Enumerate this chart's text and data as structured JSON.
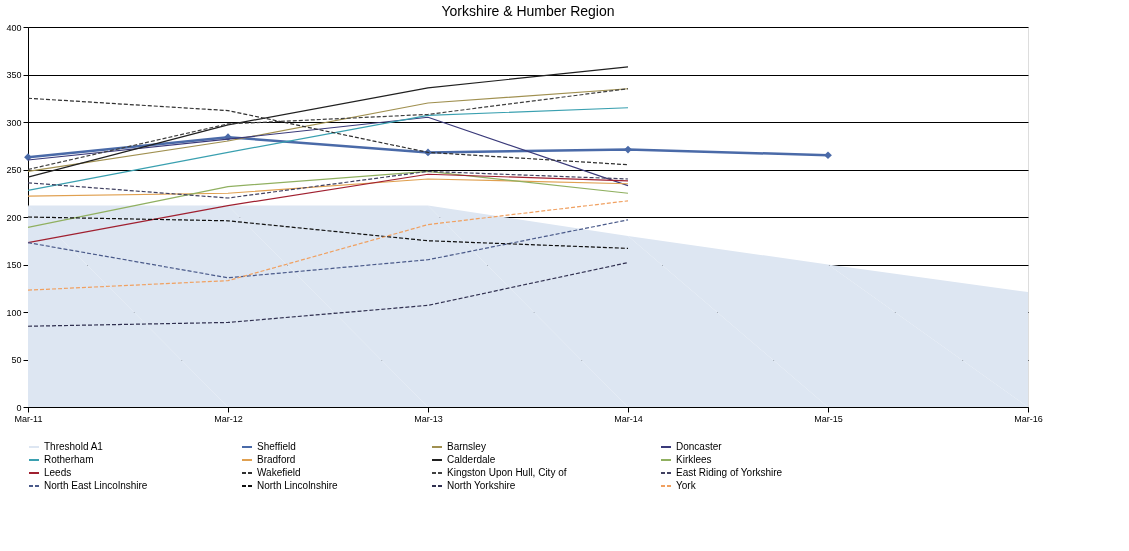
{
  "chart_data": {
    "type": "line",
    "title": "Yorkshire & Humber Region",
    "categories": [
      "Mar-11",
      "Mar-12",
      "Mar-13",
      "Mar-14",
      "Mar-15",
      "Mar-16"
    ],
    "ylim": [
      0,
      400
    ],
    "yticks": [
      0,
      50,
      100,
      150,
      200,
      250,
      300,
      350,
      400
    ],
    "grid": "y",
    "legend": "bottom",
    "series": [
      {
        "name": "Threshold A1",
        "type": "area",
        "color": "#dde6f2",
        "values": [
          212,
          212,
          212,
          180,
          150,
          121
        ]
      },
      {
        "name": "Sheffield",
        "color": "#4a6aa8",
        "marker": "diamond",
        "line_style": "solid",
        "values": [
          263,
          284,
          268,
          271,
          265,
          null
        ]
      },
      {
        "name": "Barnsley",
        "color": "#a09050",
        "line_style": "solid",
        "values": [
          248,
          280,
          320,
          335,
          null,
          null
        ]
      },
      {
        "name": "Doncaster",
        "color": "#3a3a7a",
        "line_style": "solid",
        "values": [
          260,
          282,
          305,
          233,
          null,
          null
        ]
      },
      {
        "name": "Rotherham",
        "color": "#3aa0b0",
        "line_style": "solid",
        "values": [
          228,
          268,
          307,
          315,
          null,
          null
        ]
      },
      {
        "name": "Bradford",
        "color": "#e0a050",
        "line_style": "solid",
        "values": [
          222,
          225,
          240,
          235,
          null,
          null
        ]
      },
      {
        "name": "Calderdale",
        "color": "#202020",
        "line_style": "solid",
        "values": [
          242,
          297,
          336,
          358,
          null,
          null
        ]
      },
      {
        "name": "Kirklees",
        "color": "#90b060",
        "line_style": "solid",
        "values": [
          189,
          232,
          248,
          225,
          null,
          null
        ]
      },
      {
        "name": "Leeds",
        "color": "#a02030",
        "line_style": "solid",
        "values": [
          173,
          212,
          245,
          238,
          null,
          null
        ]
      },
      {
        "name": "Wakefield",
        "color": "#303030",
        "line_style": "dashed",
        "values": [
          325,
          312,
          268,
          255,
          null,
          null
        ]
      },
      {
        "name": "Kingston Upon Hull, City of",
        "color": "#404040",
        "line_style": "dashed",
        "values": [
          250,
          298,
          308,
          335,
          null,
          null
        ]
      },
      {
        "name": "East Riding of Yorkshire",
        "color": "#404060",
        "line_style": "dashed",
        "values": [
          236,
          220,
          248,
          240,
          null,
          null
        ]
      },
      {
        "name": "North East Lincolnshire",
        "color": "#4a5a8a",
        "line_style": "dashed",
        "values": [
          173,
          136,
          155,
          197,
          null,
          null
        ]
      },
      {
        "name": "North Lincolnshire",
        "color": "#101010",
        "line_style": "dashed",
        "values": [
          200,
          196,
          175,
          167,
          null,
          null
        ]
      },
      {
        "name": "North Yorkshire",
        "color": "#303050",
        "line_style": "dashed",
        "values": [
          85,
          89,
          107,
          152,
          null,
          null
        ]
      },
      {
        "name": "York",
        "color": "#f0a060",
        "line_style": "dashed",
        "values": [
          123,
          133,
          192,
          217,
          null,
          null
        ]
      }
    ]
  }
}
